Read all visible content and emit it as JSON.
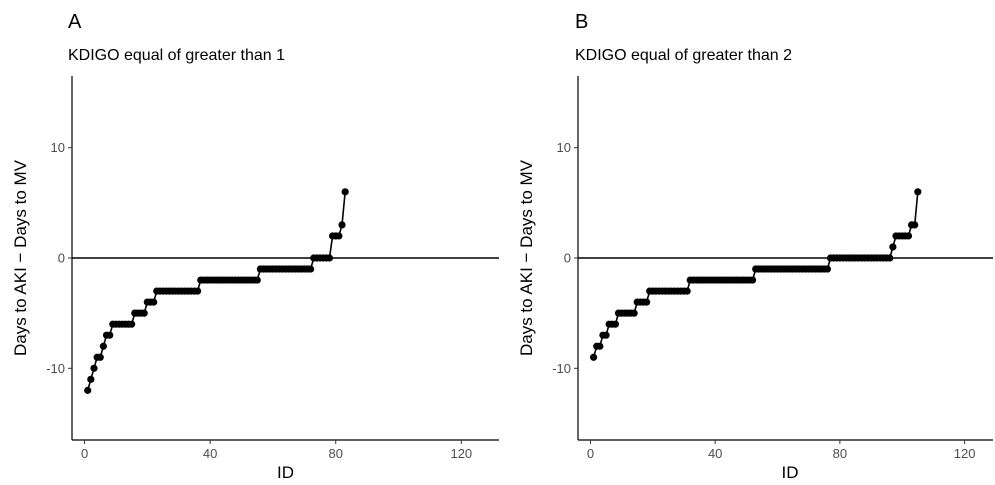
{
  "chart_data": [
    {
      "type": "line",
      "panel_label": "A",
      "title": "KDIGO equal of greater than 1",
      "xlabel": "ID",
      "ylabel": "Days to AKI − Days to MV",
      "xlim": [
        -4,
        132
      ],
      "ylim": [
        -16.5,
        16.5
      ],
      "xticks": [
        0,
        40,
        80,
        120
      ],
      "xtick_labels": [
        "0",
        "40",
        "80",
        "120"
      ],
      "yticks": [
        -10,
        0,
        10
      ],
      "ytick_labels": [
        "-10",
        "0",
        "10"
      ],
      "hline": 0,
      "grid": false,
      "series": [
        {
          "x": [
            1,
            2,
            3,
            4,
            5,
            6,
            7,
            8,
            9,
            10,
            11,
            12,
            13,
            14,
            15,
            16,
            17,
            18,
            19,
            20,
            21,
            22,
            23,
            24,
            25,
            26,
            27,
            28,
            29,
            30,
            31,
            32,
            33,
            34,
            35,
            36,
            37,
            38,
            39,
            40,
            41,
            42,
            43,
            44,
            45,
            46,
            47,
            48,
            49,
            50,
            51,
            52,
            53,
            54,
            55,
            56,
            57,
            58,
            59,
            60,
            61,
            62,
            63,
            64,
            65,
            66,
            67,
            68,
            69,
            70,
            71,
            72,
            73,
            74,
            75,
            76,
            77,
            78,
            79,
            80,
            81,
            82,
            83
          ],
          "y": [
            -12,
            -11,
            -10,
            -9,
            -9,
            -8,
            -7,
            -7,
            -6,
            -6,
            -6,
            -6,
            -6,
            -6,
            -6,
            -5,
            -5,
            -5,
            -5,
            -4,
            -4,
            -4,
            -3,
            -3,
            -3,
            -3,
            -3,
            -3,
            -3,
            -3,
            -3,
            -3,
            -3,
            -3,
            -3,
            -3,
            -2,
            -2,
            -2,
            -2,
            -2,
            -2,
            -2,
            -2,
            -2,
            -2,
            -2,
            -2,
            -2,
            -2,
            -2,
            -2,
            -2,
            -2,
            -2,
            -1,
            -1,
            -1,
            -1,
            -1,
            -1,
            -1,
            -1,
            -1,
            -1,
            -1,
            -1,
            -1,
            -1,
            -1,
            -1,
            -1,
            0,
            0,
            0,
            0,
            0,
            0,
            2,
            2,
            2,
            3,
            6
          ]
        }
      ]
    },
    {
      "type": "line",
      "panel_label": "B",
      "title": "KDIGO equal of greater than 2",
      "xlabel": "ID",
      "ylabel": "Days to AKI − Days to MV",
      "xlim": [
        -4,
        132
      ],
      "ylim": [
        -16.5,
        16.5
      ],
      "xticks": [
        0,
        40,
        80,
        120
      ],
      "xtick_labels": [
        "0",
        "40",
        "80",
        "120"
      ],
      "yticks": [
        -10,
        0,
        10
      ],
      "ytick_labels": [
        "-10",
        "0",
        "10"
      ],
      "hline": 0,
      "grid": false,
      "series": [
        {
          "x": [
            1,
            2,
            3,
            4,
            5,
            6,
            7,
            8,
            9,
            10,
            11,
            12,
            13,
            14,
            15,
            16,
            17,
            18,
            19,
            20,
            21,
            22,
            23,
            24,
            25,
            26,
            27,
            28,
            29,
            30,
            31,
            32,
            33,
            34,
            35,
            36,
            37,
            38,
            39,
            40,
            41,
            42,
            43,
            44,
            45,
            46,
            47,
            48,
            49,
            50,
            51,
            52,
            53,
            54,
            55,
            56,
            57,
            58,
            59,
            60,
            61,
            62,
            63,
            64,
            65,
            66,
            67,
            68,
            69,
            70,
            71,
            72,
            73,
            74,
            75,
            76,
            77,
            78,
            79,
            80,
            81,
            82,
            83,
            84,
            85,
            86,
            87,
            88,
            89,
            90,
            91,
            92,
            93,
            94,
            95,
            96,
            97,
            98,
            99,
            100,
            101,
            102,
            103,
            104,
            105
          ],
          "y": [
            -9,
            -8,
            -8,
            -7,
            -7,
            -6,
            -6,
            -6,
            -5,
            -5,
            -5,
            -5,
            -5,
            -5,
            -4,
            -4,
            -4,
            -4,
            -3,
            -3,
            -3,
            -3,
            -3,
            -3,
            -3,
            -3,
            -3,
            -3,
            -3,
            -3,
            -3,
            -2,
            -2,
            -2,
            -2,
            -2,
            -2,
            -2,
            -2,
            -2,
            -2,
            -2,
            -2,
            -2,
            -2,
            -2,
            -2,
            -2,
            -2,
            -2,
            -2,
            -2,
            -1,
            -1,
            -1,
            -1,
            -1,
            -1,
            -1,
            -1,
            -1,
            -1,
            -1,
            -1,
            -1,
            -1,
            -1,
            -1,
            -1,
            -1,
            -1,
            -1,
            -1,
            -1,
            -1,
            -1,
            0,
            0,
            0,
            0,
            0,
            0,
            0,
            0,
            0,
            0,
            0,
            0,
            0,
            0,
            0,
            0,
            0,
            0,
            0,
            0,
            1,
            2,
            2,
            2,
            2,
            2,
            3,
            3,
            6
          ]
        }
      ]
    }
  ]
}
